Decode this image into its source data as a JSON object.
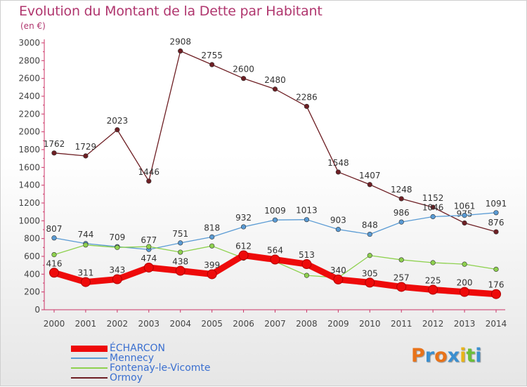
{
  "title": "Evolution du Montant de la Dette par Habitant",
  "unit": "(en €)",
  "logo": {
    "text": "Proxiti",
    "letters": [
      {
        "ch": "P",
        "color": "#e8731a"
      },
      {
        "ch": "r",
        "color": "#3a8fd0"
      },
      {
        "ch": "o",
        "color": "#e8731a"
      },
      {
        "ch": "x",
        "color": "#3a8fd0"
      },
      {
        "ch": "i",
        "color": "#e8b41a"
      },
      {
        "ch": "t",
        "color": "#6cbf3a"
      },
      {
        "ch": "i",
        "color": "#3a8fd0"
      }
    ]
  },
  "chart_data": {
    "type": "line",
    "title": "Evolution du Montant de la Dette par Habitant",
    "ylabel": "(en €)",
    "xlabel": "",
    "x": [
      "2000",
      "2001",
      "2002",
      "2003",
      "2004",
      "2005",
      "2006",
      "2007",
      "2008",
      "2009",
      "2010",
      "2011",
      "2012",
      "2013",
      "2014"
    ],
    "ylim": [
      0,
      3000
    ],
    "yticks": [
      0,
      200,
      400,
      600,
      800,
      1000,
      1200,
      1400,
      1600,
      1800,
      2000,
      2200,
      2400,
      2600,
      2800,
      3000
    ],
    "grid": false,
    "legend_position": "bottom-left",
    "series": [
      {
        "name": "Ormoy",
        "color": "#6e1f24",
        "labels": true,
        "values": [
          1762,
          1729,
          2023,
          1446,
          2908,
          2755,
          2600,
          2480,
          2286,
          1548,
          1407,
          1248,
          1152,
          975,
          876
        ]
      },
      {
        "name": "Mennecy",
        "color": "#5a9bd4",
        "labels": true,
        "values": [
          807,
          744,
          709,
          677,
          751,
          818,
          932,
          1009,
          1013,
          903,
          848,
          986,
          1046,
          1061,
          1091
        ]
      },
      {
        "name": "Fontenay-le-Vicomte",
        "color": "#8ed14e",
        "labels": false,
        "values": [
          619,
          728,
          700,
          710,
          647,
          717,
          580,
          542,
          386,
          360,
          610,
          561,
          529,
          512,
          455
        ]
      },
      {
        "name": "ÉCHARCON",
        "color": "#ee0a0a",
        "labels": true,
        "values": [
          416,
          311,
          343,
          474,
          438,
          399,
          612,
          564,
          513,
          340,
          305,
          257,
          225,
          200,
          176
        ]
      }
    ]
  }
}
